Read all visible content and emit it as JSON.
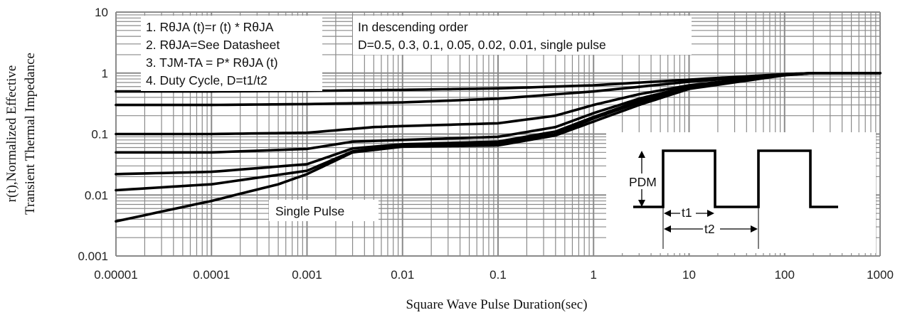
{
  "chart_data": {
    "type": "line",
    "x_scale": "log",
    "y_scale": "log",
    "xlim": [
      1e-05,
      1000
    ],
    "ylim": [
      0.001,
      10
    ],
    "xlabel": "Square Wave Pulse Duration(sec)",
    "ylabel_lines": [
      "r(t),Normalized Effective",
      "Transient Thermal Impedance"
    ],
    "x_ticks": [
      "0.00001",
      "0.0001",
      "0.001",
      "0.01",
      "0.1",
      "1",
      "10",
      "100",
      "1000"
    ],
    "y_ticks": [
      "0.001",
      "0.01",
      "0.1",
      "1",
      "10"
    ],
    "grid": true,
    "notes": [
      "1. RθJA (t)=r (t) * RθJA",
      "2. RθJA=See Datasheet",
      "3. TJM-TA = P* RθJA (t)",
      "4. Duty Cycle, D=t1/t2"
    ],
    "legend_title": "In descending order",
    "legend_text": "D=0.5, 0.3, 0.1, 0.05, 0.02, 0.01, single pulse",
    "annotation": "Single Pulse",
    "inset_labels": {
      "pdm": "PDM",
      "t1": "t1",
      "t2": "t2"
    },
    "series": [
      {
        "name": "D=0.5",
        "points": [
          [
            1e-05,
            0.5
          ],
          [
            0.0001,
            0.5
          ],
          [
            0.001,
            0.51
          ],
          [
            0.01,
            0.53
          ],
          [
            0.1,
            0.56
          ],
          [
            1,
            0.63
          ],
          [
            10,
            0.78
          ],
          [
            100,
            0.96
          ],
          [
            200,
            1.0
          ],
          [
            1000,
            1.0
          ]
        ]
      },
      {
        "name": "D=0.3",
        "points": [
          [
            1e-05,
            0.3
          ],
          [
            0.0001,
            0.3
          ],
          [
            0.001,
            0.31
          ],
          [
            0.01,
            0.33
          ],
          [
            0.1,
            0.38
          ],
          [
            1,
            0.5
          ],
          [
            10,
            0.72
          ],
          [
            100,
            0.95
          ],
          [
            200,
            1.0
          ],
          [
            1000,
            1.0
          ]
        ]
      },
      {
        "name": "D=0.1",
        "points": [
          [
            1e-05,
            0.1
          ],
          [
            0.0001,
            0.1
          ],
          [
            0.001,
            0.105
          ],
          [
            0.005,
            0.13
          ],
          [
            0.01,
            0.135
          ],
          [
            0.1,
            0.15
          ],
          [
            0.4,
            0.2
          ],
          [
            1,
            0.3
          ],
          [
            3,
            0.45
          ],
          [
            10,
            0.63
          ],
          [
            100,
            0.94
          ],
          [
            200,
            1.0
          ],
          [
            1000,
            1.0
          ]
        ]
      },
      {
        "name": "D=0.05",
        "points": [
          [
            1e-05,
            0.05
          ],
          [
            0.0001,
            0.05
          ],
          [
            0.001,
            0.057
          ],
          [
            0.003,
            0.075
          ],
          [
            0.01,
            0.08
          ],
          [
            0.1,
            0.09
          ],
          [
            0.4,
            0.13
          ],
          [
            1,
            0.22
          ],
          [
            3,
            0.38
          ],
          [
            10,
            0.6
          ],
          [
            100,
            0.94
          ],
          [
            200,
            1.0
          ],
          [
            1000,
            1.0
          ]
        ]
      },
      {
        "name": "D=0.02",
        "points": [
          [
            1e-05,
            0.022
          ],
          [
            0.0001,
            0.024
          ],
          [
            0.001,
            0.032
          ],
          [
            0.003,
            0.058
          ],
          [
            0.01,
            0.068
          ],
          [
            0.1,
            0.075
          ],
          [
            0.4,
            0.11
          ],
          [
            1,
            0.19
          ],
          [
            3,
            0.35
          ],
          [
            10,
            0.58
          ],
          [
            100,
            0.93
          ],
          [
            200,
            1.0
          ],
          [
            1000,
            1.0
          ]
        ]
      },
      {
        "name": "D=0.01",
        "points": [
          [
            1e-05,
            0.012
          ],
          [
            0.0001,
            0.015
          ],
          [
            0.001,
            0.025
          ],
          [
            0.003,
            0.052
          ],
          [
            0.01,
            0.065
          ],
          [
            0.1,
            0.07
          ],
          [
            0.4,
            0.1
          ],
          [
            1,
            0.18
          ],
          [
            3,
            0.33
          ],
          [
            10,
            0.57
          ],
          [
            100,
            0.93
          ],
          [
            200,
            1.0
          ],
          [
            1000,
            1.0
          ]
        ]
      },
      {
        "name": "single pulse",
        "points": [
          [
            1e-05,
            0.0037
          ],
          [
            0.0001,
            0.008
          ],
          [
            0.0005,
            0.015
          ],
          [
            0.001,
            0.022
          ],
          [
            0.003,
            0.05
          ],
          [
            0.01,
            0.062
          ],
          [
            0.1,
            0.065
          ],
          [
            0.4,
            0.095
          ],
          [
            1,
            0.16
          ],
          [
            3,
            0.3
          ],
          [
            10,
            0.55
          ],
          [
            100,
            0.92
          ],
          [
            200,
            1.0
          ],
          [
            1000,
            1.0
          ]
        ]
      }
    ]
  }
}
